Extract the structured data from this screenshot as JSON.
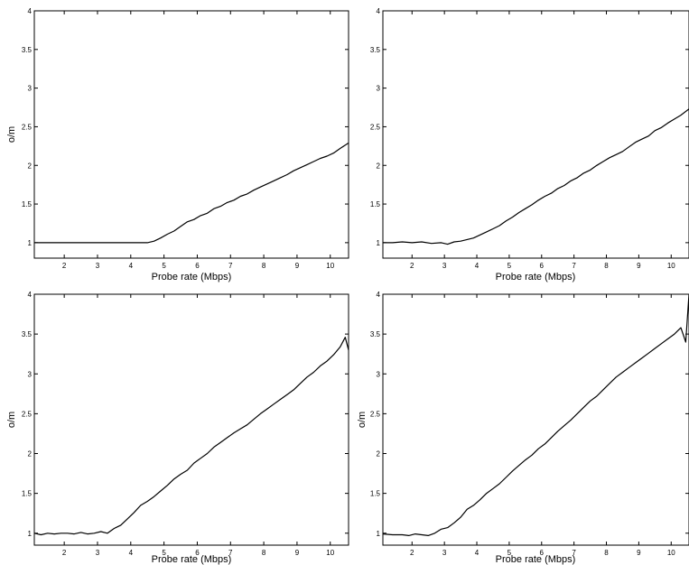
{
  "figure": {
    "panels": 4,
    "layout": "2x2",
    "line_color": "#000000",
    "background": "#ffffff"
  },
  "chart_data": [
    {
      "type": "line",
      "position": "top-left",
      "title": "",
      "xlabel": "Probe rate (Mbps)",
      "ylabel": "o/m",
      "xlim": [
        1.1,
        10.55
      ],
      "ylim": [
        0.8,
        4
      ],
      "xticks": [
        2,
        3,
        4,
        5,
        6,
        7,
        8,
        9,
        10
      ],
      "yticks": [
        1,
        1.5,
        2,
        2.5,
        3,
        3.5,
        4
      ],
      "ytick_labels": [
        "1",
        "1.5",
        "2",
        "2.5",
        "3",
        "3.5",
        "4"
      ],
      "grid": false,
      "series": [
        {
          "x": [
            1.1,
            1.5,
            2.0,
            2.5,
            3.0,
            3.5,
            4.0,
            4.3,
            4.5,
            4.7,
            4.9,
            5.1,
            5.3,
            5.5,
            5.7,
            5.9,
            6.1,
            6.3,
            6.5,
            6.7,
            6.9,
            7.1,
            7.3,
            7.5,
            7.7,
            7.9,
            8.1,
            8.3,
            8.5,
            8.7,
            8.9,
            9.1,
            9.3,
            9.5,
            9.7,
            9.9,
            10.1,
            10.3,
            10.55
          ],
          "y": [
            1.0,
            1.0,
            1.0,
            1.0,
            1.0,
            1.0,
            1.0,
            1.0,
            1.0,
            1.02,
            1.06,
            1.11,
            1.15,
            1.21,
            1.27,
            1.3,
            1.35,
            1.38,
            1.44,
            1.47,
            1.52,
            1.55,
            1.6,
            1.63,
            1.68,
            1.72,
            1.76,
            1.8,
            1.84,
            1.88,
            1.93,
            1.97,
            2.01,
            2.05,
            2.09,
            2.12,
            2.16,
            2.22,
            2.29
          ]
        }
      ]
    },
    {
      "type": "line",
      "position": "top-right",
      "title": "",
      "xlabel": "Probe rate (Mbps)",
      "ylabel": "",
      "xlim": [
        1.1,
        10.55
      ],
      "ylim": [
        0.8,
        4
      ],
      "xticks": [
        2,
        3,
        4,
        5,
        6,
        7,
        8,
        9,
        10
      ],
      "yticks": [
        1,
        1.5,
        2,
        2.5,
        3,
        3.5,
        4
      ],
      "ytick_labels": [
        "1",
        "1.5",
        "2",
        "2.5",
        "3",
        "3.5",
        "4"
      ],
      "grid": false,
      "series": [
        {
          "x": [
            1.1,
            1.4,
            1.7,
            2.0,
            2.3,
            2.6,
            2.9,
            3.1,
            3.3,
            3.5,
            3.7,
            3.9,
            4.1,
            4.3,
            4.5,
            4.7,
            4.9,
            5.1,
            5.3,
            5.5,
            5.7,
            5.9,
            6.1,
            6.3,
            6.5,
            6.7,
            6.9,
            7.1,
            7.3,
            7.5,
            7.7,
            7.9,
            8.1,
            8.3,
            8.5,
            8.7,
            8.9,
            9.1,
            9.3,
            9.5,
            9.7,
            9.9,
            10.1,
            10.3,
            10.55
          ],
          "y": [
            1.0,
            1.0,
            1.01,
            1.0,
            1.01,
            0.99,
            1.0,
            0.98,
            1.01,
            1.02,
            1.04,
            1.06,
            1.1,
            1.14,
            1.18,
            1.22,
            1.28,
            1.33,
            1.39,
            1.44,
            1.49,
            1.55,
            1.6,
            1.64,
            1.7,
            1.74,
            1.8,
            1.84,
            1.9,
            1.94,
            2.0,
            2.05,
            2.1,
            2.14,
            2.18,
            2.24,
            2.3,
            2.34,
            2.38,
            2.45,
            2.49,
            2.55,
            2.6,
            2.65,
            2.73
          ]
        }
      ]
    },
    {
      "type": "line",
      "position": "bottom-left",
      "title": "",
      "xlabel": "Probe rate (Mbps)",
      "ylabel": "o/m",
      "xlim": [
        1.1,
        10.55
      ],
      "ylim": [
        0.85,
        4
      ],
      "xticks": [
        2,
        3,
        4,
        5,
        6,
        7,
        8,
        9,
        10
      ],
      "yticks": [
        1,
        1.5,
        2,
        2.5,
        3,
        3.5,
        4
      ],
      "ytick_labels": [
        "1",
        "1.5",
        "2",
        "2.5",
        "3",
        "3.5",
        "4"
      ],
      "grid": false,
      "series": [
        {
          "x": [
            1.1,
            1.3,
            1.5,
            1.7,
            1.9,
            2.1,
            2.3,
            2.5,
            2.7,
            2.9,
            3.1,
            3.3,
            3.5,
            3.7,
            3.9,
            4.1,
            4.3,
            4.5,
            4.7,
            4.9,
            5.1,
            5.3,
            5.5,
            5.7,
            5.9,
            6.1,
            6.3,
            6.5,
            6.7,
            6.9,
            7.1,
            7.3,
            7.5,
            7.7,
            7.9,
            8.1,
            8.3,
            8.5,
            8.7,
            8.9,
            9.1,
            9.3,
            9.5,
            9.7,
            9.9,
            10.1,
            10.3,
            10.45,
            10.55
          ],
          "y": [
            1.0,
            0.98,
            1.0,
            0.99,
            1.0,
            1.0,
            0.99,
            1.01,
            0.99,
            1.0,
            1.02,
            1.0,
            1.06,
            1.1,
            1.18,
            1.26,
            1.35,
            1.4,
            1.46,
            1.53,
            1.6,
            1.68,
            1.74,
            1.79,
            1.88,
            1.94,
            2.0,
            2.08,
            2.14,
            2.2,
            2.26,
            2.31,
            2.36,
            2.43,
            2.5,
            2.56,
            2.62,
            2.68,
            2.74,
            2.8,
            2.88,
            2.96,
            3.02,
            3.1,
            3.16,
            3.24,
            3.34,
            3.46,
            3.3
          ]
        }
      ]
    },
    {
      "type": "line",
      "position": "bottom-right",
      "title": "",
      "xlabel": "Probe rate (Mbps)",
      "ylabel": "o/m",
      "xlim": [
        1.1,
        10.55
      ],
      "ylim": [
        0.85,
        4
      ],
      "xticks": [
        2,
        3,
        4,
        5,
        6,
        7,
        8,
        9,
        10
      ],
      "yticks": [
        1,
        1.5,
        2,
        2.5,
        3,
        3.5,
        4
      ],
      "ytick_labels": [
        "1",
        "1.5",
        "2",
        "2.5",
        "3",
        "3.5",
        "4"
      ],
      "grid": false,
      "series": [
        {
          "x": [
            1.1,
            1.4,
            1.7,
            1.9,
            2.1,
            2.3,
            2.5,
            2.7,
            2.9,
            3.1,
            3.3,
            3.5,
            3.7,
            3.9,
            4.1,
            4.3,
            4.5,
            4.7,
            4.9,
            5.1,
            5.3,
            5.5,
            5.7,
            5.9,
            6.1,
            6.3,
            6.5,
            6.7,
            6.9,
            7.1,
            7.3,
            7.5,
            7.7,
            7.9,
            8.1,
            8.3,
            8.5,
            8.7,
            8.9,
            9.1,
            9.3,
            9.5,
            9.7,
            9.9,
            10.1,
            10.3,
            10.45,
            10.55
          ],
          "y": [
            0.99,
            0.98,
            0.98,
            0.97,
            0.99,
            0.98,
            0.97,
            1.0,
            1.05,
            1.07,
            1.13,
            1.2,
            1.3,
            1.35,
            1.42,
            1.5,
            1.56,
            1.62,
            1.7,
            1.78,
            1.85,
            1.92,
            1.98,
            2.06,
            2.12,
            2.2,
            2.28,
            2.35,
            2.42,
            2.5,
            2.58,
            2.66,
            2.72,
            2.8,
            2.88,
            2.96,
            3.02,
            3.08,
            3.14,
            3.2,
            3.26,
            3.32,
            3.38,
            3.44,
            3.5,
            3.58,
            3.4,
            4.0
          ]
        }
      ]
    }
  ]
}
